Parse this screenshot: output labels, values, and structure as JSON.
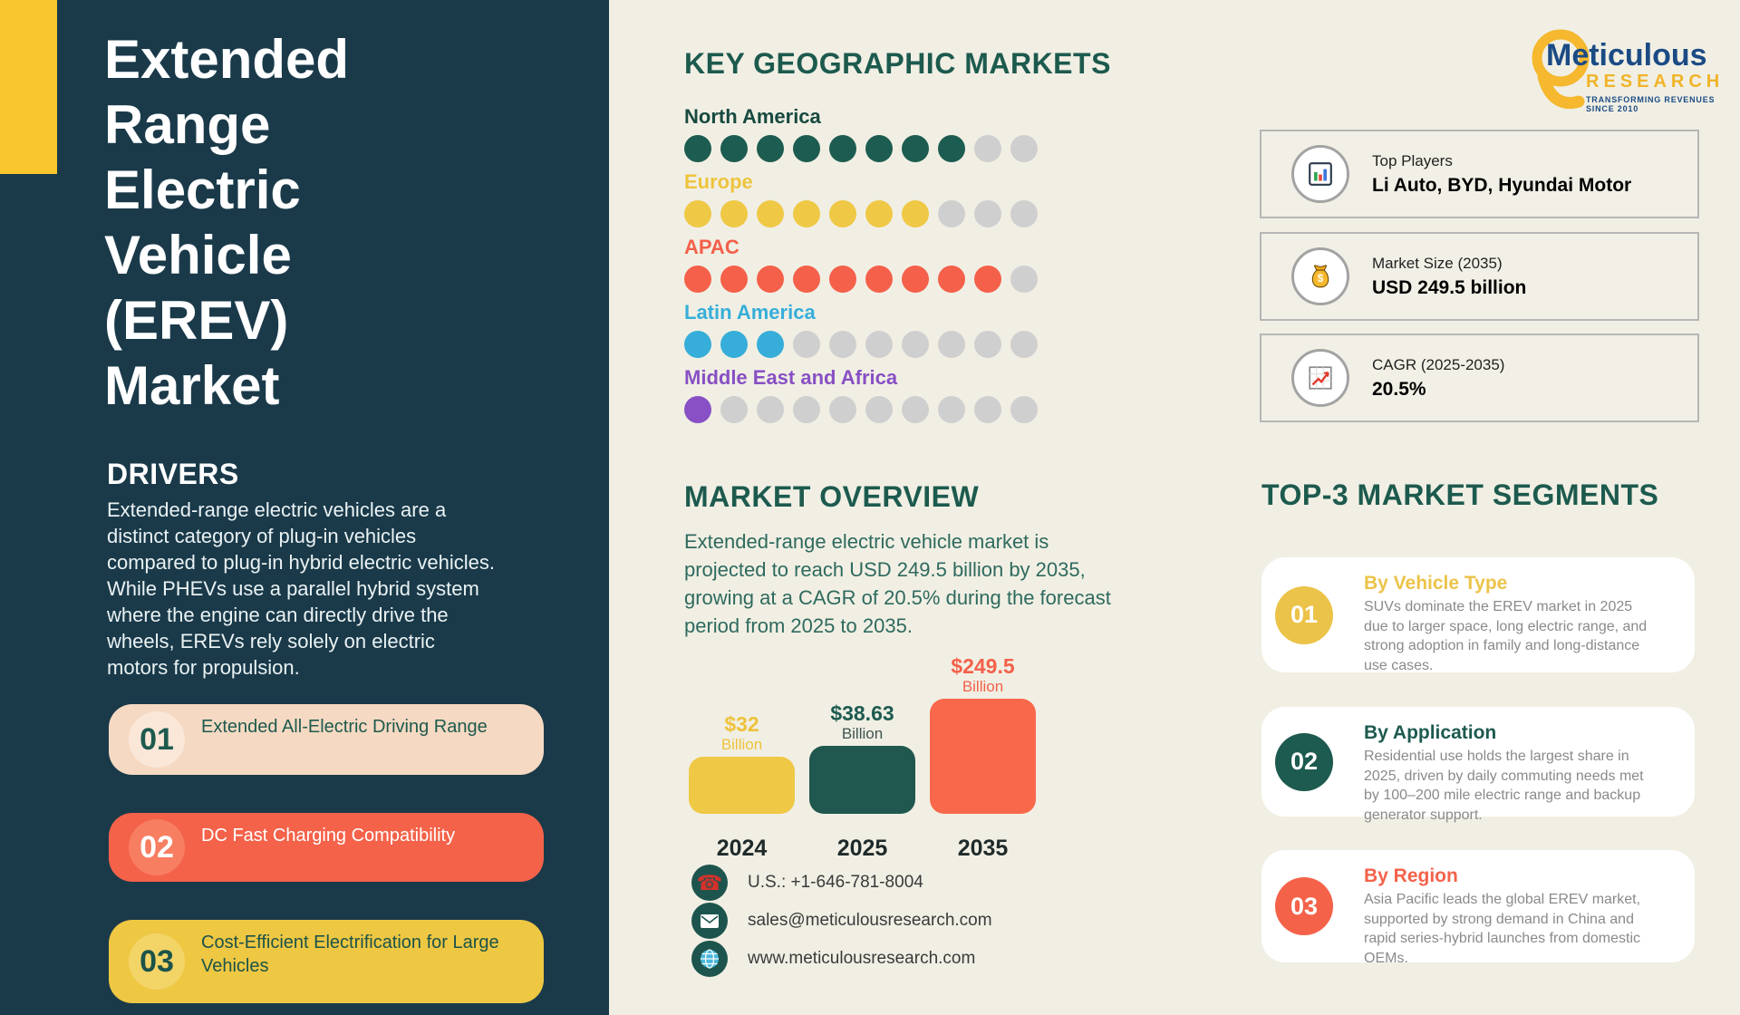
{
  "page": {
    "background": "#F1EFE4"
  },
  "sidebar": {
    "background": "#1A3A4A",
    "accent_color": "#F8C62E",
    "title": "Extended\nRange\nElectric\nVehicle\n(EREV)\nMarket",
    "drivers_heading": "DRIVERS",
    "drivers_text": "Extended-range electric vehicles are a\ndistinct category of plug-in vehicles\ncompared to plug-in hybrid electric vehicles.\nWhile PHEVs use a parallel hybrid system\nwhere the engine can directly drive the\nwheels, EREVs rely solely on electric\nmotors for propulsion.",
    "driver_items": [
      {
        "number": "01",
        "label": "Extended All-Electric Driving Range",
        "bg": "#F6D9C2",
        "circle": "#FAE7D8",
        "text_color": "#1D5A4E"
      },
      {
        "number": "02",
        "label": "DC Fast Charging Compatibility",
        "bg": "#F4624A",
        "circle": "#F87E62",
        "text_color": "#FFFFFF"
      },
      {
        "number": "03",
        "label": "Cost-Efficient Electrification for Large\nVehicles",
        "bg": "#EEC743",
        "circle": "#F3D467",
        "text_color": "#1C5349"
      }
    ]
  },
  "geo_markets": {
    "heading": "KEY GEOGRAPHIC MARKETS",
    "dot_total": 10,
    "empty_dot_color": "#CFCFCF",
    "regions": [
      {
        "name": "North America",
        "filled": 8,
        "color": "#1D5C50",
        "label_color": "#17493F"
      },
      {
        "name": "Europe",
        "filled": 7,
        "color": "#EFC845",
        "label_color": "#EEC43E"
      },
      {
        "name": "APAC",
        "filled": 9,
        "color": "#F4604A",
        "label_color": "#F4604A"
      },
      {
        "name": "Latin America",
        "filled": 3,
        "color": "#36AED9",
        "label_color": "#36AED9"
      },
      {
        "name": "Middle East and Africa",
        "filled": 1,
        "color": "#8850C4",
        "label_color": "#8850C4"
      }
    ]
  },
  "market_overview": {
    "heading": "MARKET OVERVIEW",
    "text": "Extended-range electric vehicle market is\nprojected to reach USD 249.5 billion by 2035,\ngrowing at a CAGR of 20.5% during the forecast\nperiod from 2025 to 2035."
  },
  "chart_data": {
    "type": "bar",
    "title": "EREV market size by year (USD billion)",
    "categories": [
      "2024",
      "2025",
      "2035"
    ],
    "values": [
      32,
      38.63,
      249.5
    ],
    "value_labels": [
      "$32",
      "$38.63",
      "$249.5"
    ],
    "unit_label": "Billion",
    "bar_colors": [
      "#EFC845",
      "#20574E",
      "#F9684A"
    ],
    "label_colors": [
      "#EEC23C",
      "#1D5A50",
      "#F4604A"
    ],
    "unit_label_colors": [
      "#EEC23C",
      "#3E5450",
      "#F4604A"
    ],
    "grid": false,
    "legend": false
  },
  "contacts": [
    {
      "icon": "phone-icon",
      "text": "U.S.: +1-646-781-8004"
    },
    {
      "icon": "email-icon",
      "text": "sales@meticulousresearch.com"
    },
    {
      "icon": "globe-icon",
      "text": "www.meticulousresearch.com"
    }
  ],
  "logo": {
    "name": "Meticulous",
    "sub": "RESEARCH",
    "tagline": "TRANSFORMING REVENUES SINCE 2010",
    "name_color": "#1B4B85",
    "gold": "#F5B82E"
  },
  "stat_cards": [
    {
      "icon": "bar-chart-icon",
      "label": "Top Players",
      "value": "Li Auto, BYD, Hyundai Motor"
    },
    {
      "icon": "money-bag-icon",
      "label": "Market Size (2035)",
      "value": "USD 249.5 billion"
    },
    {
      "icon": "growth-chart-icon",
      "label": "CAGR (2025-2035)",
      "value": "20.5%"
    }
  ],
  "segments": {
    "heading": "TOP-3 MARKET SEGMENTS",
    "items": [
      {
        "number": "01",
        "title": "By Vehicle Type",
        "accent": "#ECC349",
        "body": "SUVs dominate the EREV market in 2025\ndue to larger space, long electric range, and\nstrong adoption in family and long-distance\nuse cases."
      },
      {
        "number": "02",
        "title": "By Application",
        "accent": "#1D5A50",
        "body": "Residential use holds the largest share in\n2025, driven by daily commuting needs met\nby 100–200 mile electric range and backup\ngenerator support."
      },
      {
        "number": "03",
        "title": "By Region",
        "accent": "#F4624A",
        "body": "Asia Pacific leads the global EREV market,\nsupported by strong demand in China and\nrapid series-hybrid launches from domestic\nOEMs."
      }
    ]
  }
}
